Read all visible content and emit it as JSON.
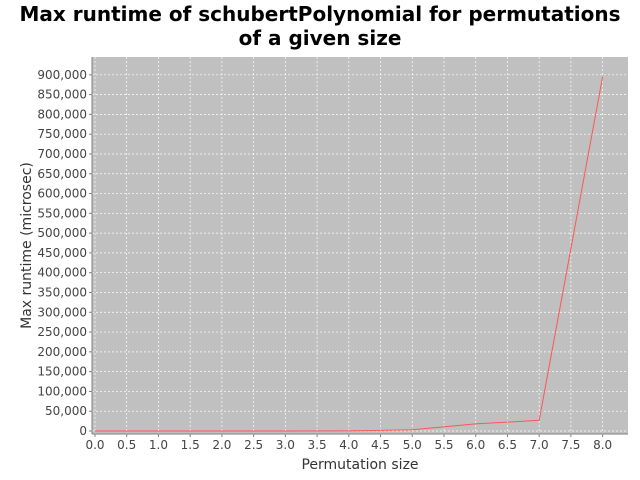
{
  "chart_data": {
    "type": "line",
    "title_line1": "Max runtime of schubertPolynomial for permutations",
    "title_line2": "of a given size",
    "xlabel": "Permutation size",
    "ylabel": "Max runtime (microsec)",
    "xlim": [
      0.0,
      8.4
    ],
    "ylim": [
      0,
      945000
    ],
    "x_ticks": [
      "0.0",
      "0.5",
      "1.0",
      "1.5",
      "2.0",
      "2.5",
      "3.0",
      "3.5",
      "4.0",
      "4.5",
      "5.0",
      "5.5",
      "6.0",
      "6.5",
      "7.0",
      "7.5",
      "8.0"
    ],
    "y_ticks": [
      "0",
      "50,000",
      "100,000",
      "150,000",
      "200,000",
      "250,000",
      "300,000",
      "350,000",
      "400,000",
      "450,000",
      "500,000",
      "550,000",
      "600,000",
      "650,000",
      "700,000",
      "750,000",
      "800,000",
      "850,000",
      "900,000"
    ],
    "grid": true,
    "plot_background": "#c0c0c0",
    "series": [
      {
        "color": "#ff5555",
        "x": [
          0,
          1,
          2,
          3,
          4,
          5,
          6,
          7,
          8
        ],
        "y": [
          0,
          0,
          0,
          0,
          200,
          3000,
          18000,
          27000,
          895000
        ]
      }
    ]
  }
}
